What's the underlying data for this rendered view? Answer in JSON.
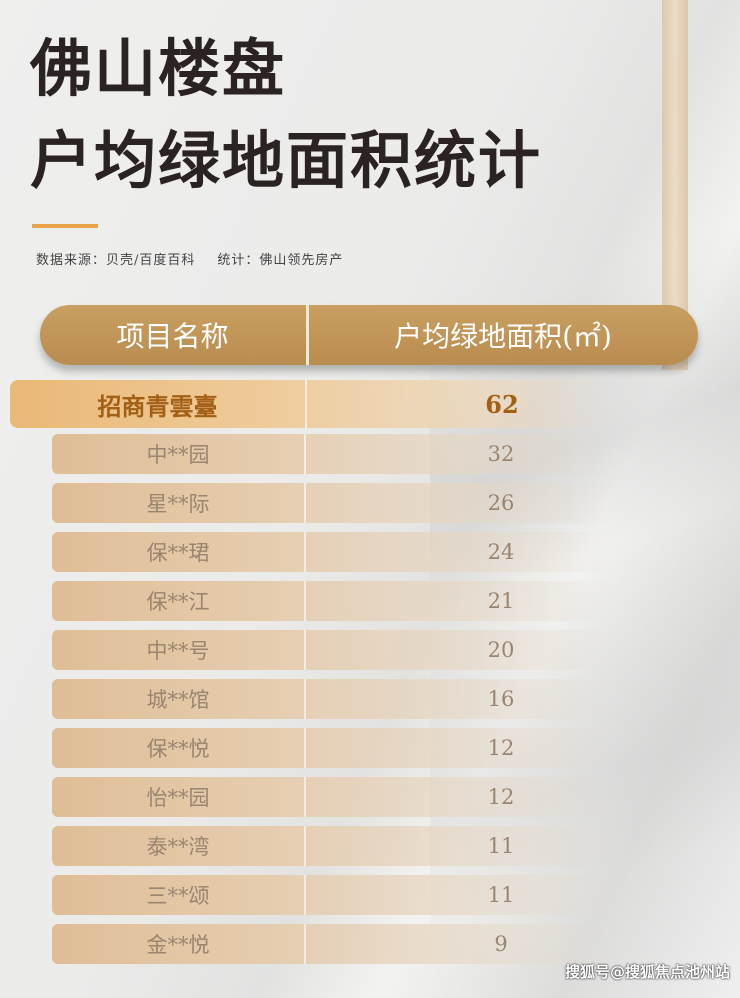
{
  "title_line1": "佛山楼盘",
  "title_line2": "户均绿地面积统计",
  "source": {
    "data_source": "数据来源：贝壳/百度百科",
    "compiled_by": "统计：佛山领先房产"
  },
  "header": {
    "name": "项目名称",
    "value": "户均绿地面积(㎡)"
  },
  "highlight": {
    "name": "招商青雲臺",
    "value": "62"
  },
  "rows": [
    {
      "name": "中**园",
      "value": "32"
    },
    {
      "name": "星**际",
      "value": "26"
    },
    {
      "name": "保**珺",
      "value": "24"
    },
    {
      "name": "保**江",
      "value": "21"
    },
    {
      "name": "中**号",
      "value": "20"
    },
    {
      "name": "城**馆",
      "value": "16"
    },
    {
      "name": "保**悦",
      "value": "12"
    },
    {
      "name": "怡**园",
      "value": "12"
    },
    {
      "name": "泰**湾",
      "value": "11"
    },
    {
      "name": "三**颂",
      "value": "11"
    },
    {
      "name": "金**悦",
      "value": "9"
    }
  ],
  "watermark": "搜狐号@搜狐焦点池州站",
  "colors": {
    "header": "#c09656",
    "highlight_text": "#a35f16",
    "accent": "#e8a24a"
  }
}
